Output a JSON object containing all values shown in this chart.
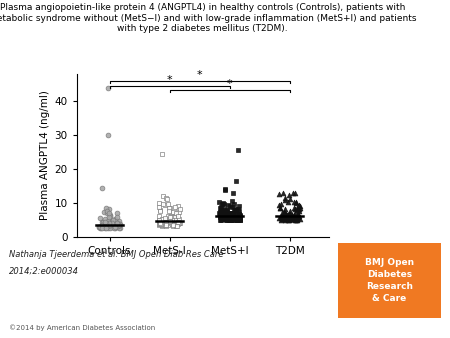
{
  "title": "Plasma angiopoietin-like protein 4 (ANGPTL4) in healthy controls (Controls), patients with\nmetabolic syndrome without (MetS−I) and with low-grade inflammation (MetS+I) and patients\nwith type 2 diabetes mellitus (T2DM).",
  "ylabel": "Plasma ANGPTL4 (ng/ml)",
  "groups": [
    "Controls",
    "MetS-I",
    "MetS+I",
    "T2DM"
  ],
  "ylim": [
    0,
    48
  ],
  "yticks": [
    0,
    10,
    20,
    30,
    40
  ],
  "medians": [
    3.5,
    4.5,
    6.0,
    6.2
  ],
  "background_color": "#ffffff",
  "citation_line1": "Nathanja Tjeerdema et al. BMJ Open Diab Res Care",
  "citation_line2": "2014;2:e000034",
  "copyright": "©2014 by American Diabetes Association",
  "bmj_color": "#F07922",
  "controls_outliers": [
    14.5,
    30.0,
    44.0
  ],
  "mets_i_outliers": [
    24.5,
    12.0,
    11.5,
    11.0
  ],
  "mets_plus_outliers": [
    25.5,
    16.5
  ],
  "group_positions": [
    1,
    2,
    3,
    4
  ],
  "markers": [
    "o",
    "s",
    "s",
    "^"
  ],
  "face_colors": [
    "#aaaaaa",
    "#ffffff",
    "#111111",
    "#111111"
  ],
  "edge_colors": [
    "#777777",
    "#777777",
    "#111111",
    "#111111"
  ],
  "marker_size": 12,
  "jitter_spread": 0.18
}
